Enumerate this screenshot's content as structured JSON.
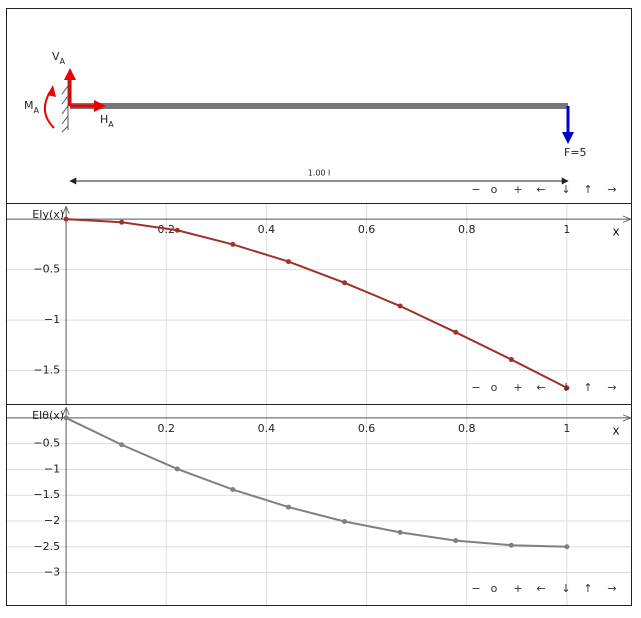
{
  "diagram": {
    "reactions": [
      {
        "main": "V",
        "sub": "A"
      },
      {
        "main": "M",
        "sub": "A"
      },
      {
        "main": "H",
        "sub": "A"
      }
    ],
    "load": "F=5",
    "span": "1.00 l"
  },
  "controls": [
    "−",
    "o",
    "+",
    "←",
    "↓",
    "↑",
    "→"
  ],
  "chart_data": [
    {
      "type": "line",
      "y_label": "EIy(x)",
      "x_label": "x",
      "color": "#a0302c",
      "x": [
        0,
        0.111,
        0.222,
        0.333,
        0.444,
        0.556,
        0.667,
        0.778,
        0.889,
        1
      ],
      "values": [
        0,
        -0.03,
        -0.11,
        -0.25,
        -0.42,
        -0.63,
        -0.86,
        -1.12,
        -1.39,
        -1.67
      ],
      "xlim": [
        -0.12,
        1.13
      ],
      "ylim": [
        -1.83,
        0.16
      ],
      "xticks": [
        0.2,
        0.4,
        0.6,
        0.8,
        1
      ],
      "yticks": [
        {
          "value": -0.5,
          "label": "−0.5"
        },
        {
          "value": -1,
          "label": "−1"
        },
        {
          "value": -1.5,
          "label": "−1.5"
        }
      ],
      "grid": true
    },
    {
      "type": "line",
      "y_label": "EIθ(x)",
      "x_label": "x",
      "color": "#808080",
      "x": [
        0,
        0.111,
        0.222,
        0.333,
        0.444,
        0.556,
        0.667,
        0.778,
        0.889,
        1
      ],
      "values": [
        0,
        -0.52,
        -0.99,
        -1.39,
        -1.73,
        -2.01,
        -2.22,
        -2.38,
        -2.47,
        -2.5
      ],
      "xlim": [
        -0.12,
        1.13
      ],
      "ylim": [
        -3.63,
        0.27
      ],
      "xticks": [
        0.2,
        0.4,
        0.6,
        0.8,
        1
      ],
      "yticks": [
        {
          "value": -0.5,
          "label": "−0.5"
        },
        {
          "value": -1,
          "label": "−1"
        },
        {
          "value": -1.5,
          "label": "−1.5"
        },
        {
          "value": -2,
          "label": "−2"
        },
        {
          "value": -2.5,
          "label": "−2.5"
        },
        {
          "value": -3,
          "label": "−3"
        }
      ],
      "grid": true
    }
  ]
}
